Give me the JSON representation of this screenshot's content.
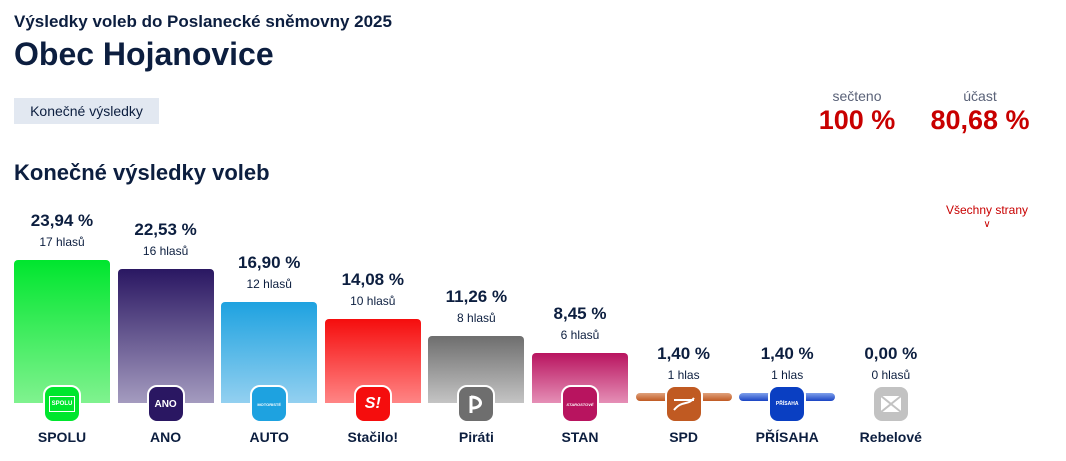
{
  "header": {
    "subtitle": "Výsledky voleb do Poslanecké sněmovny 2025",
    "title": "Obec Hojanovice",
    "tab_label": "Konečné výsledky"
  },
  "stats": {
    "counted_label": "sečteno",
    "counted_value": "100 %",
    "turnout_label": "účast",
    "turnout_value": "80,68 %"
  },
  "section_title": "Konečné výsledky voleb",
  "all_parties_link": "Všechny strany",
  "colors": {
    "accent": "#c80000",
    "text": "#0c1e3f"
  },
  "chart_data": {
    "type": "bar",
    "title": "Konečné výsledky voleb",
    "categories": [
      "SPOLU",
      "ANO",
      "AUTO",
      "Stačilo!",
      "Piráti",
      "STAN",
      "SPD",
      "PŘÍSAHA",
      "Rebelové"
    ],
    "values": [
      23.94,
      22.53,
      16.9,
      14.08,
      11.26,
      8.45,
      1.4,
      1.4,
      0.0
    ],
    "value_labels": [
      "23,94 %",
      "22,53 %",
      "16,90 %",
      "14,08 %",
      "11,26 %",
      "8,45 %",
      "1,40 %",
      "1,40 %",
      "0,00 %"
    ],
    "votes": [
      17,
      16,
      12,
      10,
      8,
      6,
      1,
      1,
      0
    ],
    "vote_labels": [
      "17 hlasů",
      "16 hlasů",
      "12 hlasů",
      "10 hlasů",
      "8 hlasů",
      "6 hlasů",
      "1 hlas",
      "1 hlas",
      "0 hlasů"
    ],
    "bar_colors": [
      [
        "#00e62e",
        "#80f28f"
      ],
      [
        "#2a1762",
        "#a49bbf"
      ],
      [
        "#1ea2e0",
        "#93d0f0"
      ],
      [
        "#f50d0d",
        "#ff8585"
      ],
      [
        "#6e6e6e",
        "#c4c4c4"
      ],
      [
        "#b8145f",
        "#e58fb6"
      ],
      [
        "#c05a22",
        "#e0a27c"
      ],
      [
        "#1a44c4",
        "#7fa0ec"
      ],
      [
        "#b5b5b5",
        "#d8d8d8"
      ]
    ],
    "logo_colors": [
      "#00e62e",
      "#2a1762",
      "#1ea2e0",
      "#f50d0d",
      "#6e6e6e",
      "#b8145f",
      "#c05a22",
      "#0a3fc2",
      "#c2c2c2"
    ],
    "logo_texts": [
      "SPOLU",
      "ANO",
      "MOTORISTÉ",
      "S!",
      "",
      "STAROSTOVÉ",
      "",
      "PŘÍSAHA",
      ""
    ],
    "ylim": [
      0,
      25
    ],
    "xlabel": "",
    "ylabel": ""
  }
}
